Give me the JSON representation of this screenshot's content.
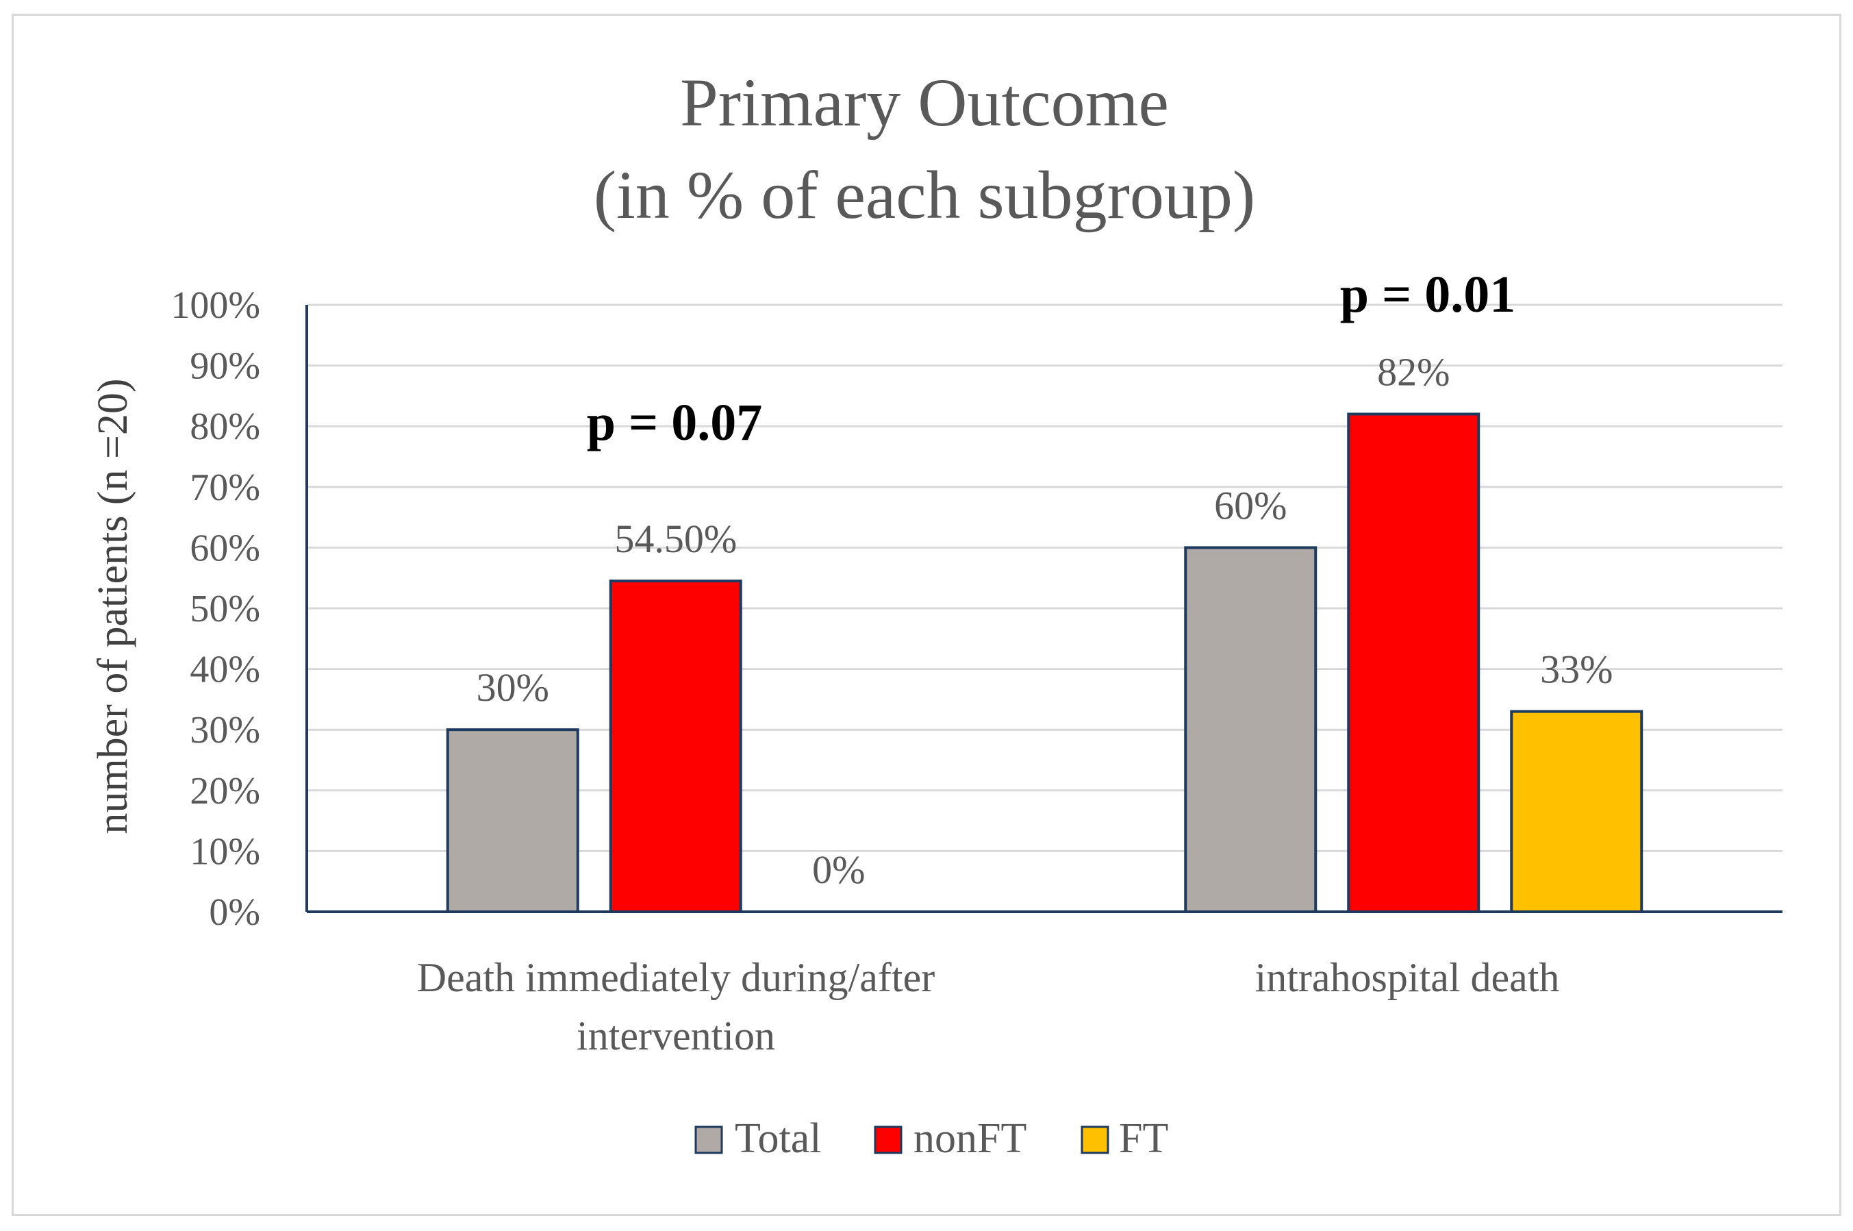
{
  "chart_data": {
    "type": "bar",
    "title": [
      "Primary Outcome",
      "(in % of each subgroup)"
    ],
    "xlabel": "",
    "ylabel": "number of patients (n =20)",
    "ylim": [
      0,
      100
    ],
    "y_ticks": [
      "0%",
      "10%",
      "20%",
      "30%",
      "40%",
      "50%",
      "60%",
      "70%",
      "80%",
      "90%",
      "100%"
    ],
    "categories": [
      [
        "Death immediately during/after",
        "intervention"
      ],
      [
        "intrahospital death"
      ]
    ],
    "series": [
      {
        "name": "Total",
        "color": "#b0aaa6",
        "values": [
          30,
          60
        ],
        "labels": [
          "30%",
          "60%"
        ]
      },
      {
        "name": "nonFT",
        "color": "#ff0000",
        "values": [
          54.5,
          82
        ],
        "labels": [
          "54.50%",
          "82%"
        ]
      },
      {
        "name": "FT",
        "color": "#ffc000",
        "values": [
          0,
          33
        ],
        "labels": [
          "0%",
          "33%"
        ]
      }
    ],
    "annotations": [
      "p = 0.07",
      "p = 0.01"
    ],
    "legend_position": "bottom",
    "grid": true,
    "bar_edge_color": "#1f3a5f",
    "gridline_color": "#d9d9d9",
    "axis_color": "#1f3a5f"
  }
}
